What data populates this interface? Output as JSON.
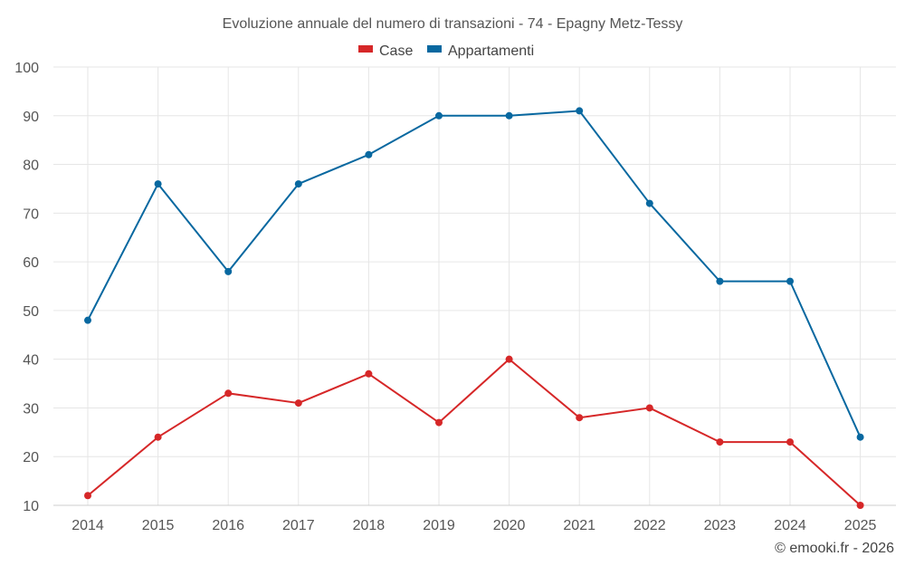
{
  "chart_data": {
    "type": "line",
    "title": "Evoluzione annuale del numero di transazioni - 74 - Epagny Metz-Tessy",
    "categories": [
      "2014",
      "2015",
      "2016",
      "2017",
      "2018",
      "2019",
      "2020",
      "2021",
      "2022",
      "2023",
      "2024",
      "2025"
    ],
    "ylim": [
      10,
      100
    ],
    "yticks": [
      10,
      20,
      30,
      40,
      50,
      60,
      70,
      80,
      90,
      100
    ],
    "grid": true,
    "legend_position": "top-center",
    "series": [
      {
        "name": "Case",
        "color": "#d62728",
        "values": [
          12,
          24,
          33,
          31,
          37,
          27,
          40,
          28,
          30,
          23,
          23,
          10
        ]
      },
      {
        "name": "Appartamenti",
        "color": "#0868a0",
        "values": [
          48,
          76,
          58,
          76,
          82,
          90,
          90,
          91,
          72,
          56,
          56,
          24
        ]
      }
    ]
  },
  "credit": "© emooki.fr - 2026"
}
